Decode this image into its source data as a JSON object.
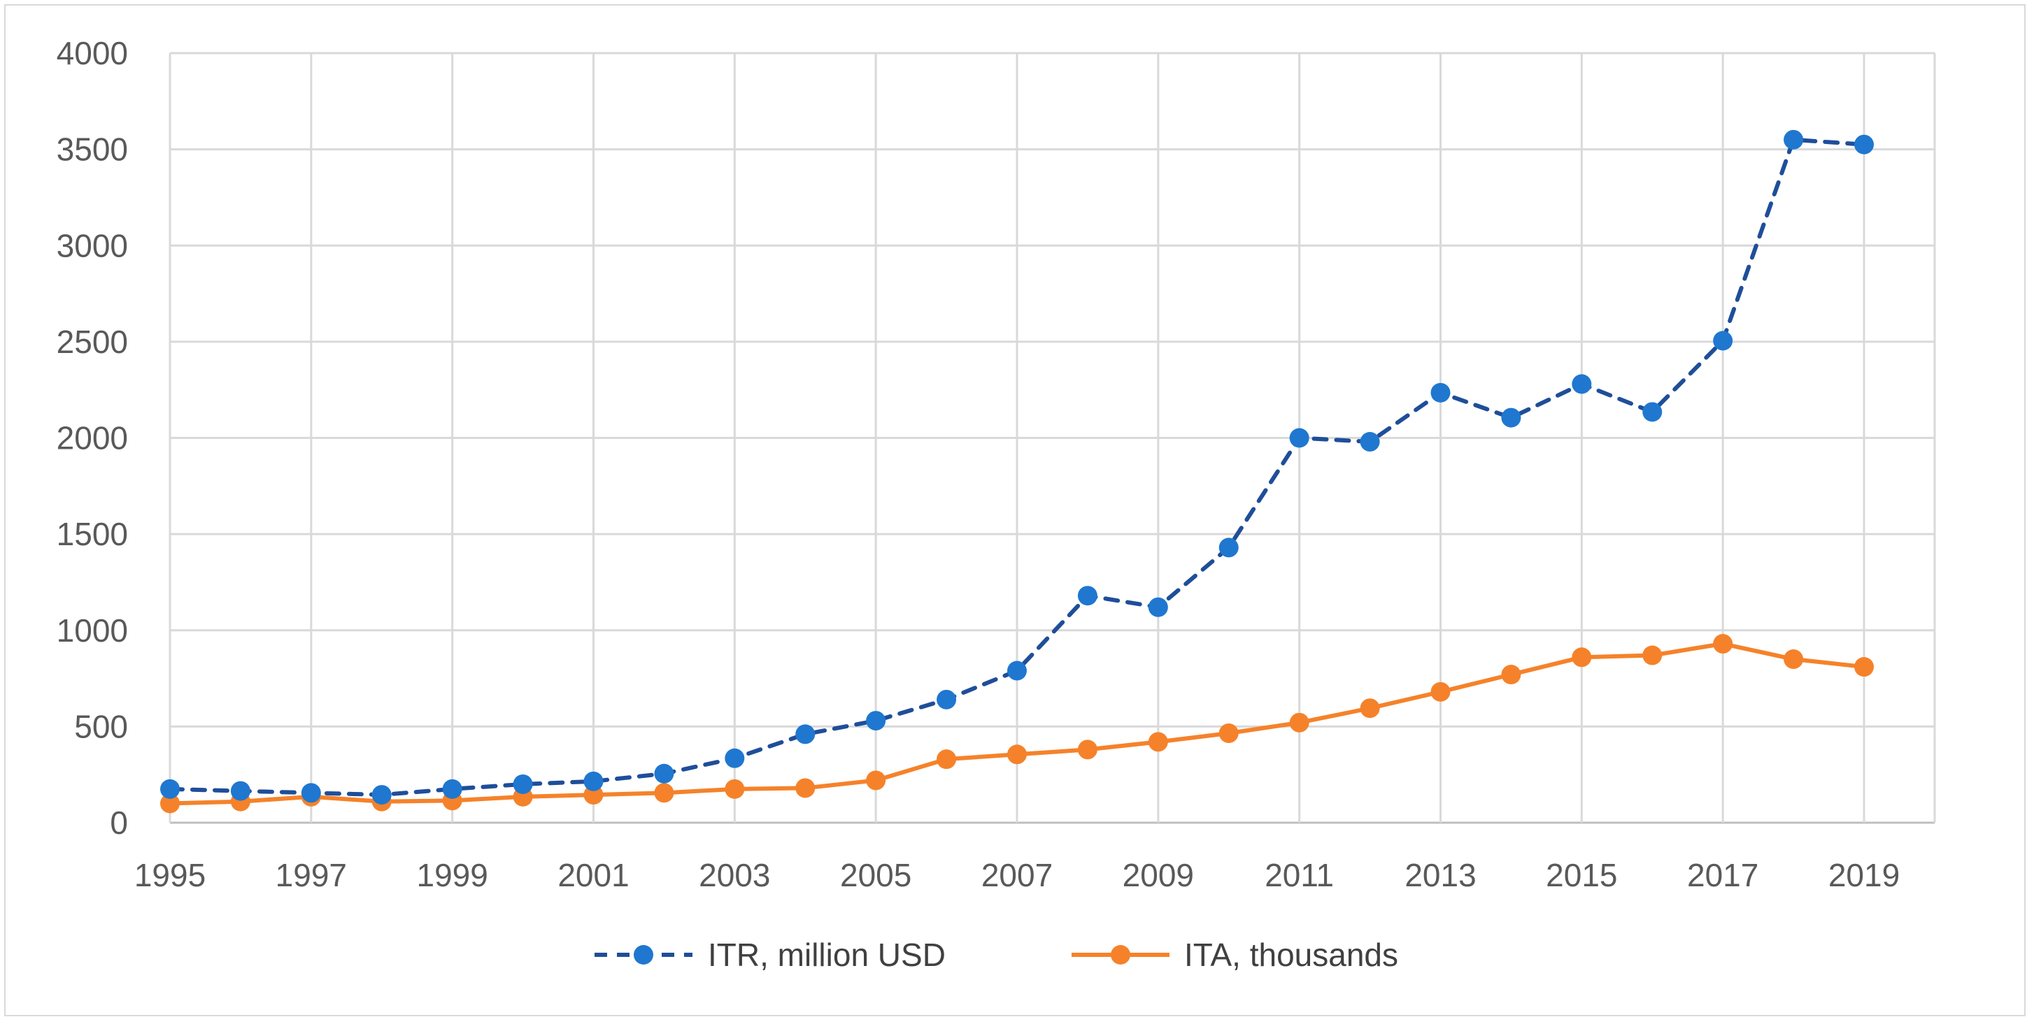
{
  "chart_data": {
    "type": "line",
    "title": "",
    "xlabel": "",
    "ylabel": "",
    "x": [
      1995,
      1996,
      1997,
      1998,
      1999,
      2000,
      2001,
      2002,
      2003,
      2004,
      2005,
      2006,
      2007,
      2008,
      2009,
      2010,
      2011,
      2012,
      2013,
      2014,
      2015,
      2016,
      2017,
      2018,
      2019
    ],
    "x_tick_labels": [
      "1995",
      "1997",
      "1999",
      "2001",
      "2003",
      "2005",
      "2007",
      "2009",
      "2011",
      "2013",
      "2015",
      "2017",
      "2019"
    ],
    "y_tick_labels": [
      "0",
      "500",
      "1000",
      "1500",
      "2000",
      "2500",
      "3000",
      "3500",
      "4000"
    ],
    "ylim": [
      0,
      4000
    ],
    "grid": true,
    "legend_position": "bottom",
    "series": [
      {
        "name": "ITR, million USD",
        "color": "#1f77d0",
        "line_style": "dashed",
        "line_color": "#1f4e99",
        "values": [
          175,
          165,
          155,
          145,
          175,
          200,
          215,
          255,
          335,
          460,
          530,
          640,
          790,
          1180,
          1120,
          1430,
          2000,
          1980,
          2235,
          2105,
          2280,
          2135,
          2505,
          3550,
          3525
        ]
      },
      {
        "name": "ITA, thousands",
        "color": "#f5822a",
        "line_style": "solid",
        "line_color": "#f5822a",
        "values": [
          100,
          110,
          135,
          110,
          115,
          135,
          145,
          155,
          175,
          180,
          220,
          330,
          355,
          380,
          420,
          465,
          520,
          595,
          680,
          770,
          860,
          870,
          930,
          850,
          810
        ]
      }
    ]
  }
}
